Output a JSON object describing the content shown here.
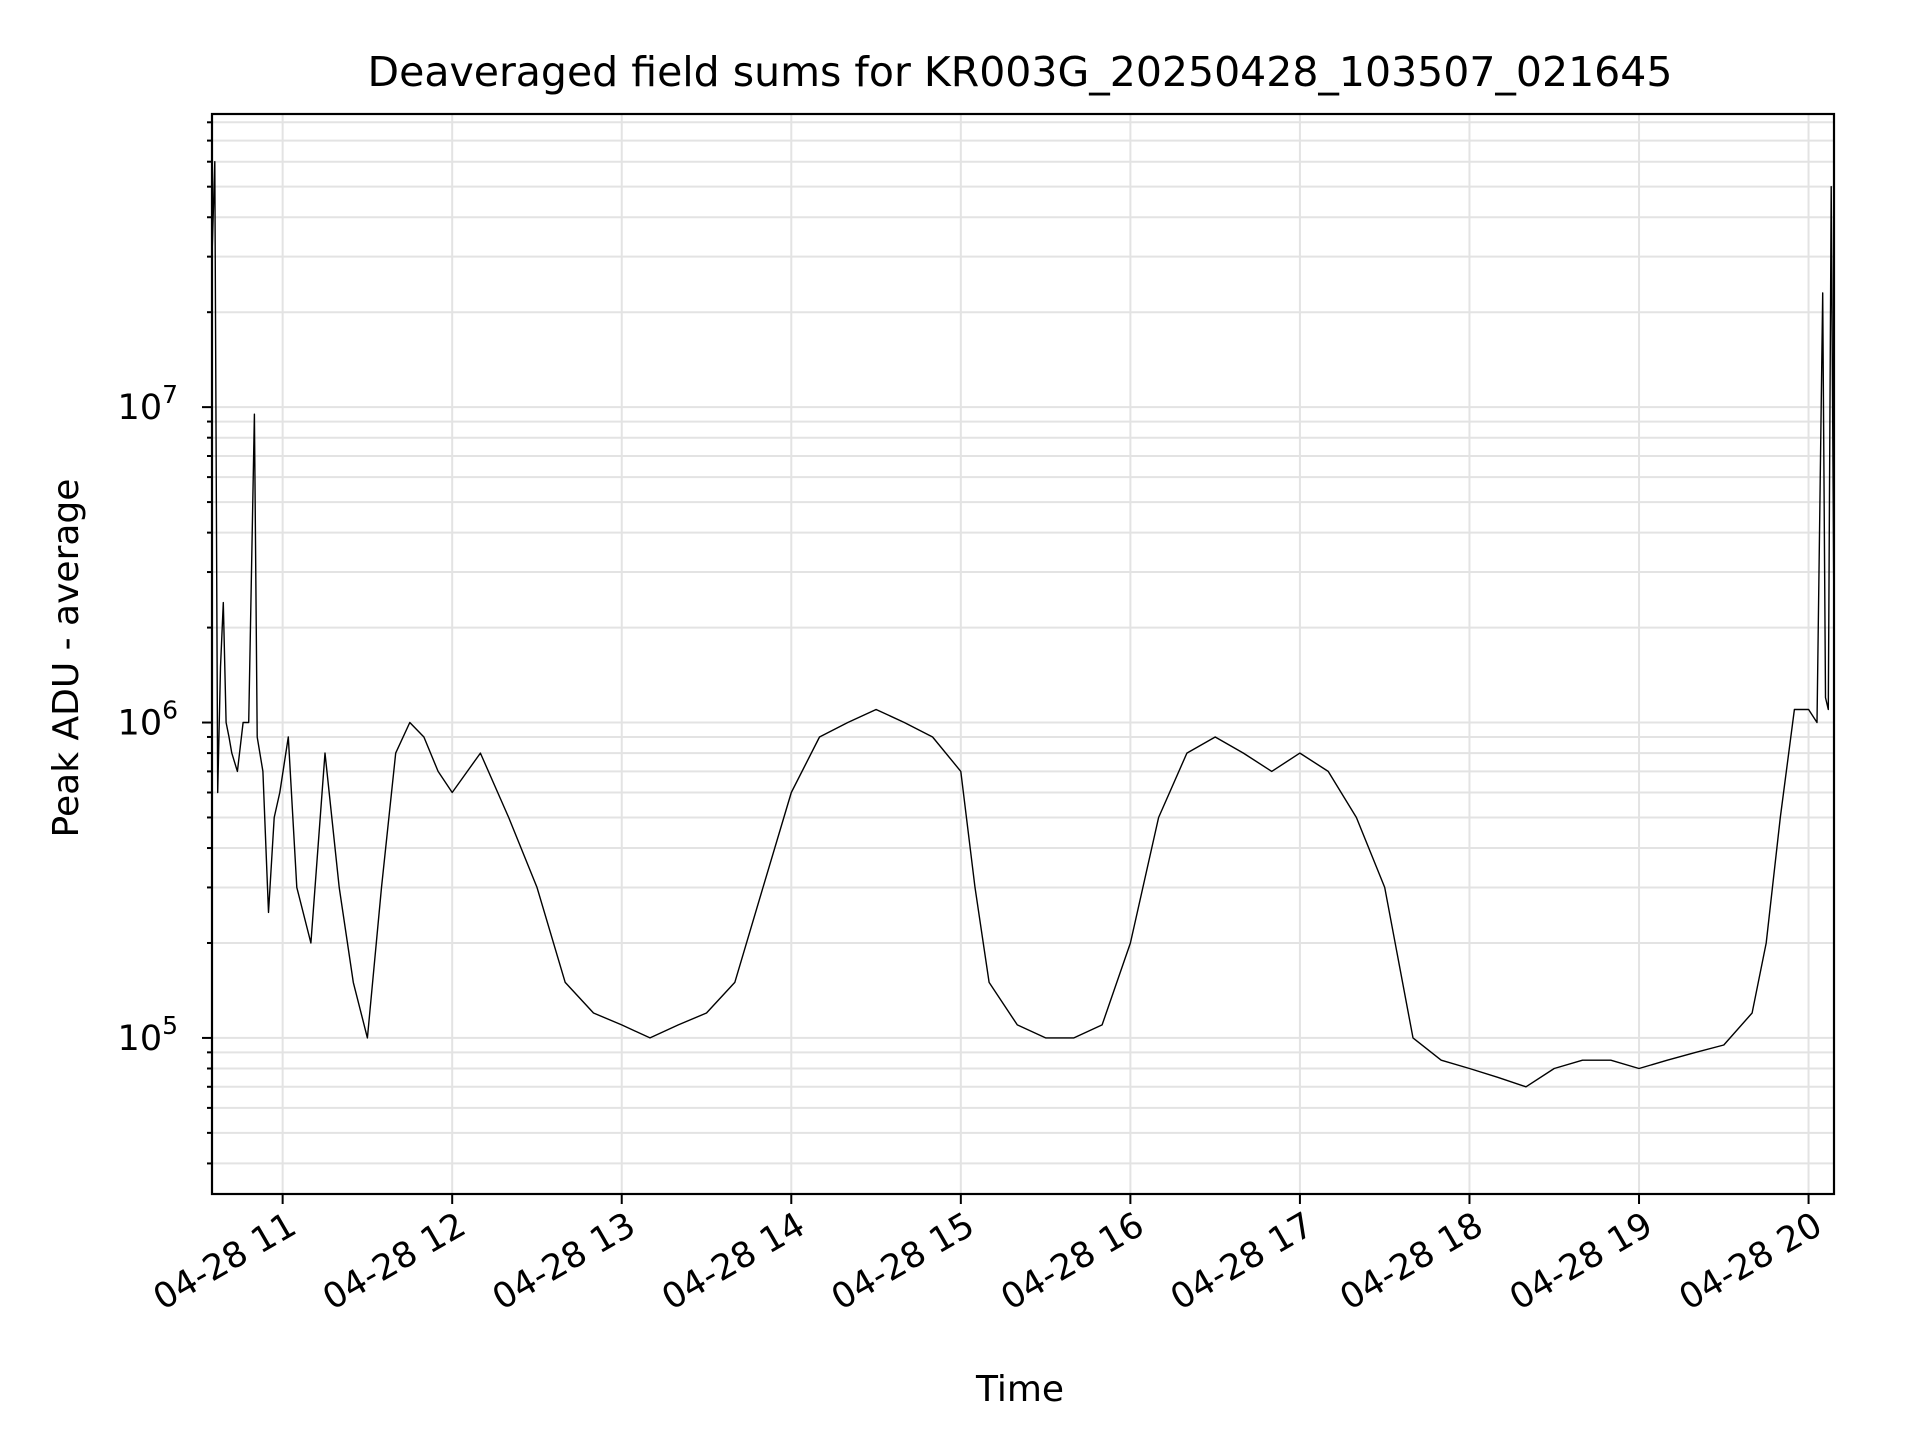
{
  "chart_data": {
    "type": "line",
    "title": "Deaveraged field sums for KR003G_20250428_103507_021645",
    "xlabel": "Time",
    "ylabel": "Peak ADU - average",
    "yscale": "log",
    "grid": "on",
    "x_unit": "datetime",
    "xlim": [
      "2025-04-28 10:35",
      "2025-04-28 20:09"
    ],
    "ylim": [
      32000,
      85000000
    ],
    "x_ticks": [
      "2025-04-28 11:00",
      "2025-04-28 12:00",
      "2025-04-28 13:00",
      "2025-04-28 14:00",
      "2025-04-28 15:00",
      "2025-04-28 16:00",
      "2025-04-28 17:00",
      "2025-04-28 18:00",
      "2025-04-28 19:00",
      "2025-04-28 20:00"
    ],
    "x_tick_labels": [
      "04-28 11",
      "04-28 12",
      "04-28 13",
      "04-28 14",
      "04-28 15",
      "04-28 16",
      "04-28 17",
      "04-28 18",
      "04-28 19",
      "04-28 20"
    ],
    "y_ticks": [
      100000,
      1000000,
      10000000
    ],
    "y_tick_labels": [
      {
        "base": "10",
        "exp": "5"
      },
      {
        "base": "10",
        "exp": "6"
      },
      {
        "base": "10",
        "exp": "7"
      }
    ],
    "series": [
      {
        "color": "#000000",
        "x": [
          "2025-04-28 10:35",
          "2025-04-28 10:36",
          "2025-04-28 10:37",
          "2025-04-28 10:38",
          "2025-04-28 10:39",
          "2025-04-28 10:40",
          "2025-04-28 10:41",
          "2025-04-28 10:42",
          "2025-04-28 10:44",
          "2025-04-28 10:46",
          "2025-04-28 10:48",
          "2025-04-28 10:50",
          "2025-04-28 10:51",
          "2025-04-28 10:53",
          "2025-04-28 10:55",
          "2025-04-28 10:57",
          "2025-04-28 10:59",
          "2025-04-28 11:02",
          "2025-04-28 11:05",
          "2025-04-28 11:10",
          "2025-04-28 11:15",
          "2025-04-28 11:20",
          "2025-04-28 11:25",
          "2025-04-28 11:30",
          "2025-04-28 11:35",
          "2025-04-28 11:40",
          "2025-04-28 11:45",
          "2025-04-28 11:50",
          "2025-04-28 11:55",
          "2025-04-28 12:00",
          "2025-04-28 12:10",
          "2025-04-28 12:20",
          "2025-04-28 12:30",
          "2025-04-28 12:40",
          "2025-04-28 12:50",
          "2025-04-28 13:00",
          "2025-04-28 13:10",
          "2025-04-28 13:20",
          "2025-04-28 13:30",
          "2025-04-28 13:40",
          "2025-04-28 13:50",
          "2025-04-28 14:00",
          "2025-04-28 14:10",
          "2025-04-28 14:20",
          "2025-04-28 14:30",
          "2025-04-28 14:40",
          "2025-04-28 14:50",
          "2025-04-28 15:00",
          "2025-04-28 15:05",
          "2025-04-28 15:10",
          "2025-04-28 15:20",
          "2025-04-28 15:30",
          "2025-04-28 15:40",
          "2025-04-28 15:50",
          "2025-04-28 16:00",
          "2025-04-28 16:10",
          "2025-04-28 16:20",
          "2025-04-28 16:30",
          "2025-04-28 16:40",
          "2025-04-28 16:50",
          "2025-04-28 17:00",
          "2025-04-28 17:10",
          "2025-04-28 17:20",
          "2025-04-28 17:30",
          "2025-04-28 17:40",
          "2025-04-28 17:50",
          "2025-04-28 18:00",
          "2025-04-28 18:10",
          "2025-04-28 18:20",
          "2025-04-28 18:30",
          "2025-04-28 18:40",
          "2025-04-28 18:50",
          "2025-04-28 19:00",
          "2025-04-28 19:10",
          "2025-04-28 19:20",
          "2025-04-28 19:30",
          "2025-04-28 19:40",
          "2025-04-28 19:45",
          "2025-04-28 19:50",
          "2025-04-28 19:55",
          "2025-04-28 20:00",
          "2025-04-28 20:03",
          "2025-04-28 20:05",
          "2025-04-28 20:06",
          "2025-04-28 20:07",
          "2025-04-28 20:08",
          "2025-04-28 20:09"
        ],
        "y": [
          30000000,
          60000000,
          600000,
          1500000,
          2400000,
          1000000,
          900000,
          800000,
          700000,
          1000000,
          1000000,
          9500000,
          900000,
          700000,
          250000,
          500000,
          600000,
          900000,
          300000,
          200000,
          800000,
          300000,
          150000,
          100000,
          300000,
          800000,
          1000000,
          900000,
          700000,
          600000,
          800000,
          500000,
          300000,
          150000,
          120000,
          110000,
          100000,
          110000,
          120000,
          150000,
          300000,
          600000,
          900000,
          1000000,
          1100000,
          1000000,
          900000,
          700000,
          300000,
          150000,
          110000,
          100000,
          100000,
          110000,
          200000,
          500000,
          800000,
          900000,
          800000,
          700000,
          800000,
          700000,
          500000,
          300000,
          100000,
          85000,
          80000,
          75000,
          70000,
          80000,
          85000,
          85000,
          80000,
          85000,
          90000,
          95000,
          120000,
          200000,
          500000,
          1100000,
          1100000,
          1000000,
          23000000,
          1200000,
          1100000,
          50000000,
          2000000
        ]
      }
    ]
  }
}
